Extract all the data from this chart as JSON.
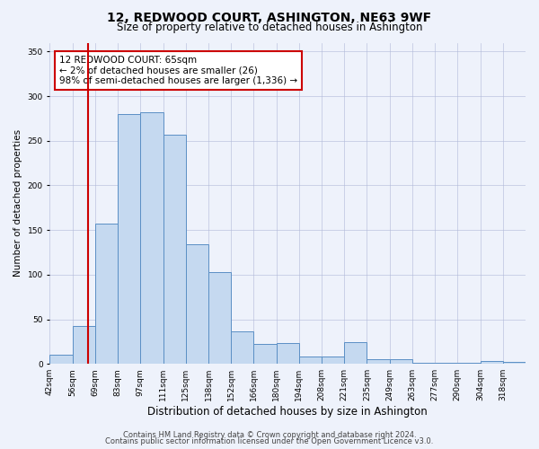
{
  "title": "12, REDWOOD COURT, ASHINGTON, NE63 9WF",
  "subtitle": "Size of property relative to detached houses in Ashington",
  "xlabel": "Distribution of detached houses by size in Ashington",
  "ylabel": "Number of detached properties",
  "bin_labels": [
    "42sqm",
    "56sqm",
    "69sqm",
    "83sqm",
    "97sqm",
    "111sqm",
    "125sqm",
    "138sqm",
    "152sqm",
    "166sqm",
    "180sqm",
    "194sqm",
    "208sqm",
    "221sqm",
    "235sqm",
    "249sqm",
    "263sqm",
    "277sqm",
    "290sqm",
    "304sqm",
    "318sqm"
  ],
  "bar_heights": [
    10,
    42,
    157,
    280,
    282,
    257,
    134,
    103,
    36,
    22,
    23,
    8,
    8,
    24,
    5,
    5,
    1,
    1,
    1,
    3,
    2
  ],
  "bar_color": "#c5d9f0",
  "bar_edge_color": "#5b8fc5",
  "vline_color": "#cc0000",
  "annotation_text": "12 REDWOOD COURT: 65sqm\n← 2% of detached houses are smaller (26)\n98% of semi-detached houses are larger (1,336) →",
  "annotation_box_color": "#ffffff",
  "annotation_box_edge": "#cc0000",
  "ylim": [
    0,
    360
  ],
  "yticks": [
    0,
    50,
    100,
    150,
    200,
    250,
    300,
    350
  ],
  "footer1": "Contains HM Land Registry data © Crown copyright and database right 2024.",
  "footer2": "Contains public sector information licensed under the Open Government Licence v3.0.",
  "bg_color": "#eef2fb",
  "plot_bg_color": "#eef2fb",
  "grid_color": "#b0b8d8",
  "title_fontsize": 10,
  "subtitle_fontsize": 8.5,
  "xlabel_fontsize": 8.5,
  "ylabel_fontsize": 7.5,
  "tick_fontsize": 6.5,
  "annotation_fontsize": 7.5,
  "footer_fontsize": 6
}
